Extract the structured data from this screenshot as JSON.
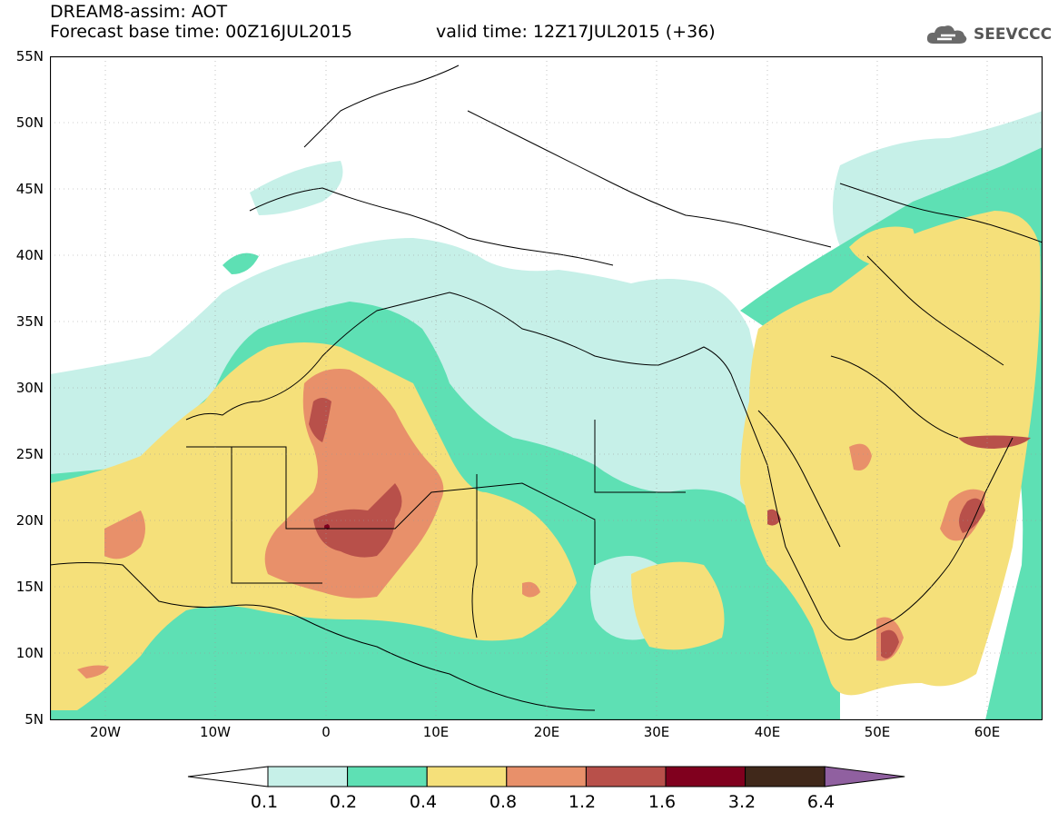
{
  "header": {
    "line1": "DREAM8-assim: AOT",
    "line2": "Forecast base time: 00Z16JUL2015",
    "valid": "valid time: 12Z17JUL2015 (+36)"
  },
  "logo": {
    "text": "SEEVCCC",
    "icon": "cloud-icon"
  },
  "axes": {
    "lat_labels": [
      "55N",
      "50N",
      "45N",
      "40N",
      "35N",
      "30N",
      "25N",
      "20N",
      "15N",
      "10N",
      "5N"
    ],
    "lon_labels": [
      "20W",
      "10W",
      "0",
      "10E",
      "20E",
      "30E",
      "40E",
      "50E",
      "60E"
    ],
    "lat_range": [
      5,
      55
    ],
    "lon_range": [
      -25,
      65
    ]
  },
  "colorbar": {
    "labels": [
      "0.1",
      "0.2",
      "0.4",
      "0.8",
      "1.2",
      "1.6",
      "3.2",
      "6.4"
    ],
    "colors": [
      "#ffffff",
      "#c6f0e8",
      "#5ee0b4",
      "#f5e07a",
      "#e8906a",
      "#b8504a",
      "#80001e",
      "#40281a",
      "#9060a0"
    ]
  }
}
